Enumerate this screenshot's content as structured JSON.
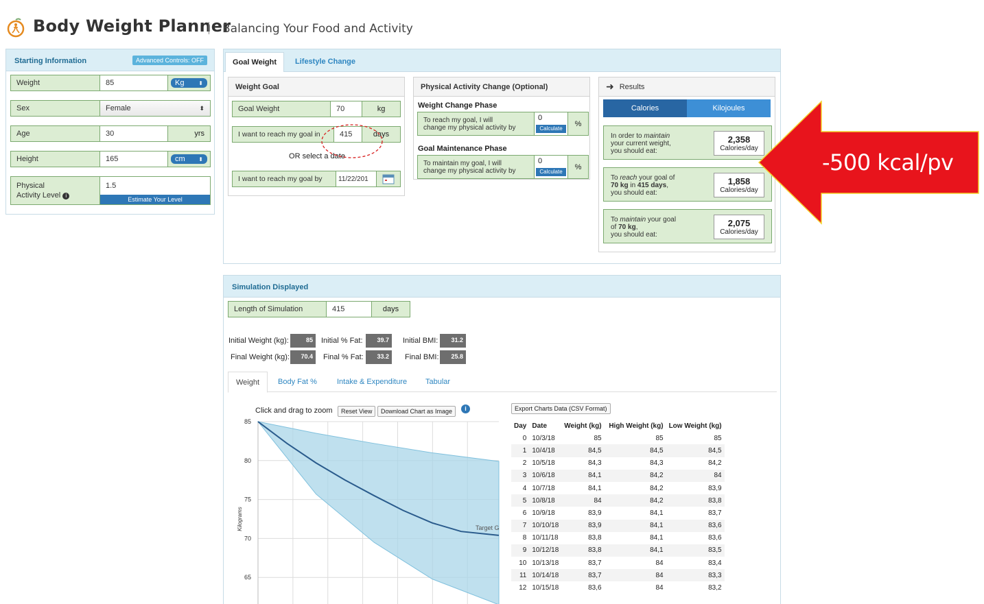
{
  "header": {
    "title": "Body Weight Planner",
    "subtitle": "Balancing Your Food and Activity"
  },
  "starting": {
    "title": "Starting Information",
    "advanced_label": "Advanced Controls: OFF",
    "weight_label": "Weight",
    "weight_value": "85",
    "weight_unit": "Kg",
    "sex_label": "Sex",
    "sex_value": "Female",
    "age_label": "Age",
    "age_value": "30",
    "age_unit": "yrs",
    "height_label": "Height",
    "height_value": "165",
    "height_unit": "cm",
    "activity_label_1": "Physical",
    "activity_label_2": "Activity Level",
    "activity_value": "1.5",
    "estimate_button": "Estimate Your Level"
  },
  "tabs": {
    "goal_weight": "Goal Weight",
    "lifestyle_change": "Lifestyle Change"
  },
  "weight_goal": {
    "title": "Weight Goal",
    "goal_weight_label": "Goal Weight",
    "goal_weight_value": "70",
    "goal_weight_unit": "kg",
    "reach_in_label": "I want to reach my goal in",
    "reach_in_value": "415",
    "reach_in_unit": "days",
    "or_select": "OR select a date",
    "reach_by_label": "I want to reach my goal by",
    "reach_by_value": "11/22/201"
  },
  "activity_change": {
    "title": "Physical Activity Change (Optional)",
    "phase1_title": "Weight Change Phase",
    "phase1_text_1": "To reach my goal, I will",
    "phase1_text_2": "change my physical activity by",
    "phase1_value": "0",
    "phase2_title": "Goal Maintenance Phase",
    "phase2_text_1": "To maintain my goal, I will",
    "phase2_text_2": "change my physical activity by",
    "phase2_value": "0",
    "calculate": "Calculate",
    "percent": "%"
  },
  "results": {
    "title": "Results",
    "tab_calories": "Calories",
    "tab_kilojoules": "Kilojoules",
    "box1_a": "In order to ",
    "box1_b": "maintain",
    "box1_c": "your current weight,",
    "box1_d": "you should eat:",
    "box1_value": "2,358",
    "box2_a": "To ",
    "box2_b": "reach",
    "box2_c": " your goal of",
    "box2_d": "70 kg",
    "box2_e": " in ",
    "box2_f": "415 days",
    "box2_g": ",",
    "box2_h": "you should eat:",
    "box2_value": "1,858",
    "box3_a": "To ",
    "box3_b": "maintain",
    "box3_c": " your goal",
    "box3_d": "of ",
    "box3_e": "70 kg",
    "box3_f": ",",
    "box3_g": "you should eat:",
    "box3_value": "2,075",
    "unit": "Calories/day"
  },
  "annotation": {
    "arrow_text": "-500 kcal/pv",
    "arrow_color": "#e8141c"
  },
  "simulation": {
    "title": "Simulation Displayed",
    "length_label": "Length of Simulation",
    "length_value": "415",
    "length_unit": "days",
    "initial_weight_label": "Initial Weight (kg):",
    "initial_weight": "85",
    "initial_fat_label": "Initial % Fat:",
    "initial_fat": "39.7",
    "initial_bmi_label": "Initial BMI:",
    "initial_bmi": "31.2",
    "final_weight_label": "Final Weight (kg):",
    "final_weight": "70.4",
    "final_fat_label": "Final % Fat:",
    "final_fat": "33.2",
    "final_bmi_label": "Final BMI:",
    "final_bmi": "25.8",
    "tabs": [
      "Weight",
      "Body Fat %",
      "Intake & Expenditure",
      "Tabular"
    ],
    "zoom_hint": "Click and drag to zoom",
    "reset_view": "Reset View",
    "download": "Download Chart as Image",
    "export": "Export Charts Data (CSV Format)",
    "target_label": "Target G"
  },
  "table": {
    "headers": [
      "Day",
      "Date",
      "Weight (kg)",
      "High Weight (kg)",
      "Low Weight (kg)"
    ],
    "rows": [
      [
        "0",
        "10/3/18",
        "85",
        "85",
        "85"
      ],
      [
        "1",
        "10/4/18",
        "84,5",
        "84,5",
        "84,5"
      ],
      [
        "2",
        "10/5/18",
        "84,3",
        "84,3",
        "84,2"
      ],
      [
        "3",
        "10/6/18",
        "84,1",
        "84,2",
        "84"
      ],
      [
        "4",
        "10/7/18",
        "84,1",
        "84,2",
        "83,9"
      ],
      [
        "5",
        "10/8/18",
        "84",
        "84,2",
        "83,8"
      ],
      [
        "6",
        "10/9/18",
        "83,9",
        "84,1",
        "83,7"
      ],
      [
        "7",
        "10/10/18",
        "83,9",
        "84,1",
        "83,6"
      ],
      [
        "8",
        "10/11/18",
        "83,8",
        "84,1",
        "83,6"
      ],
      [
        "9",
        "10/12/18",
        "83,8",
        "84,1",
        "83,5"
      ],
      [
        "10",
        "10/13/18",
        "83,7",
        "84",
        "83,4"
      ],
      [
        "11",
        "10/14/18",
        "83,7",
        "84",
        "83,3"
      ],
      [
        "12",
        "10/15/18",
        "83,6",
        "84",
        "83,2"
      ]
    ]
  },
  "chart_data": {
    "type": "area",
    "ylabel": "Kilograms",
    "yticks": [
      85,
      80,
      75,
      70,
      65
    ],
    "ylim": [
      61.5,
      85
    ],
    "xlim": [
      0,
      415
    ],
    "series": [
      {
        "name": "Weight",
        "x": [
          0,
          50,
          100,
          150,
          200,
          250,
          300,
          350,
          415
        ],
        "values": [
          85,
          82.2,
          79.7,
          77.5,
          75.5,
          73.6,
          72.0,
          70.9,
          70.4
        ]
      },
      {
        "name": "High Weight",
        "x": [
          0,
          100,
          200,
          300,
          415
        ],
        "values": [
          85,
          83.5,
          82.2,
          81.0,
          79.9
        ]
      },
      {
        "name": "Low Weight",
        "x": [
          0,
          100,
          200,
          300,
          415
        ],
        "values": [
          85,
          75.7,
          69.5,
          64.8,
          61.5
        ]
      }
    ],
    "band_color": "#a9d6e8",
    "line_color": "#2a5b8c"
  }
}
